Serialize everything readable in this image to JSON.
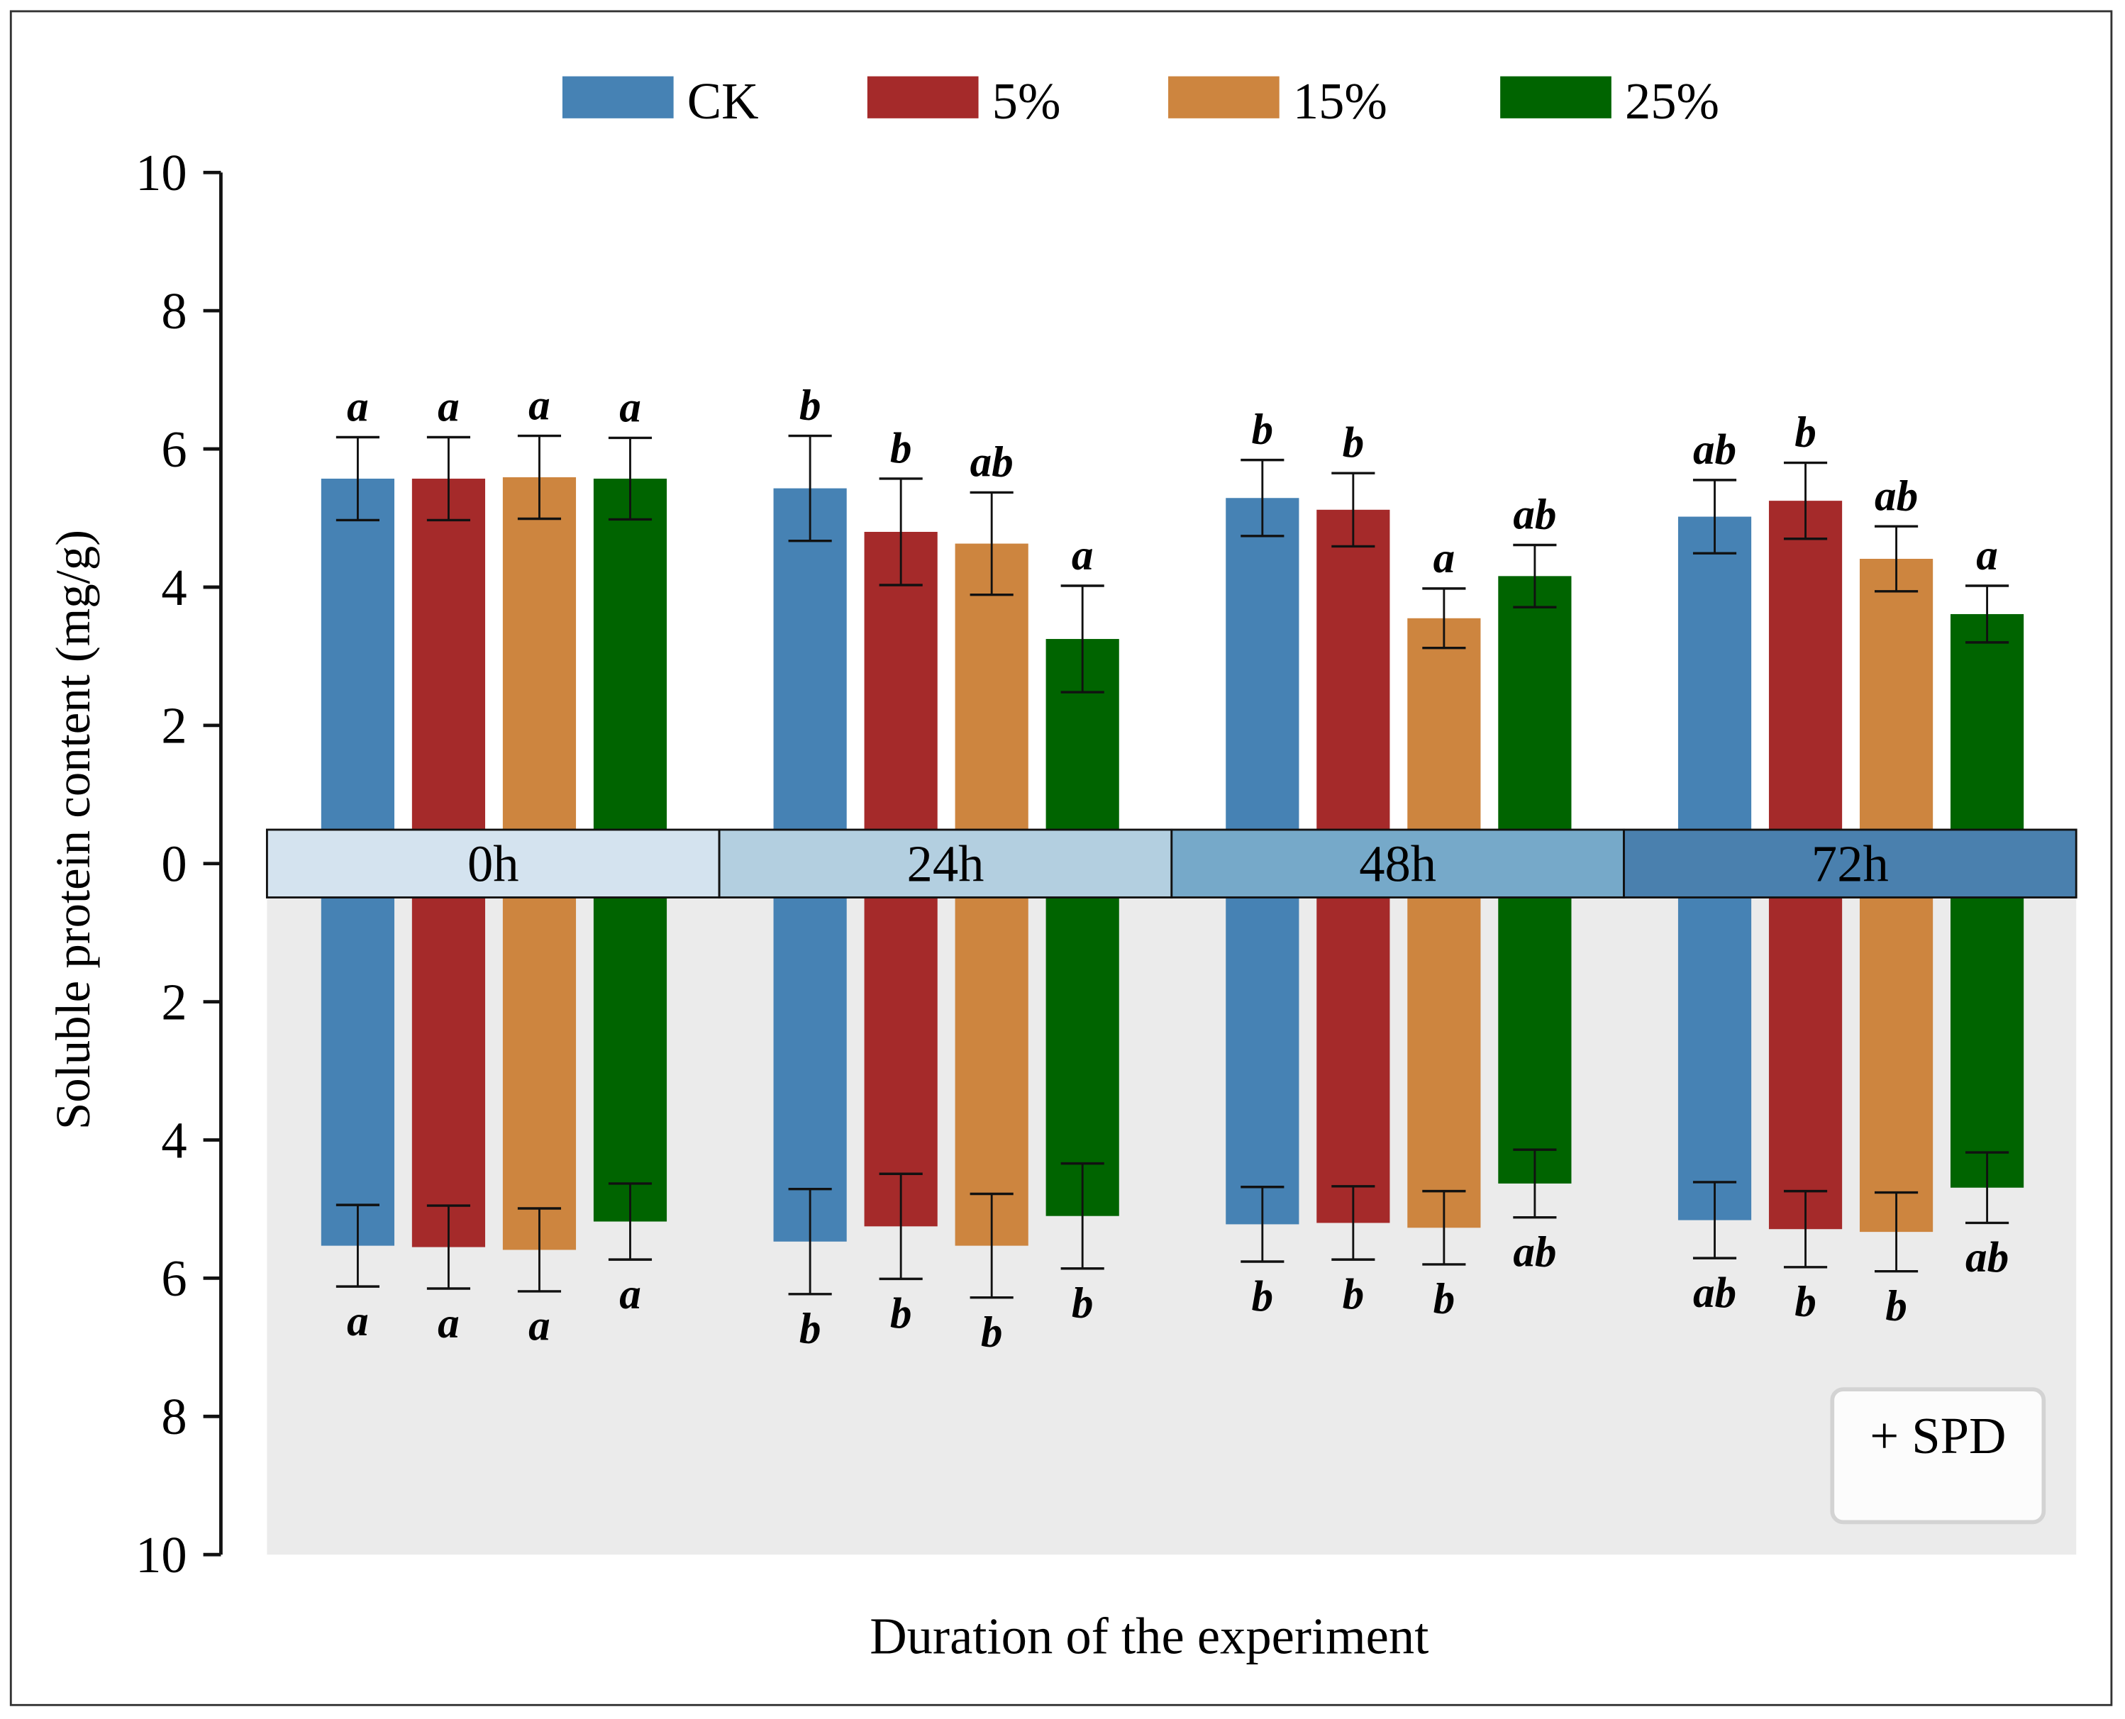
{
  "chart_data": {
    "type": "bar",
    "ylabel": "Soluble protein content (mg/g)",
    "xlabel": "Duration of the experiment",
    "categories": [
      "0h",
      "24h",
      "48h",
      "72h"
    ],
    "ylim": [
      0,
      10
    ],
    "yticks": [
      "0",
      "2",
      "4",
      "6",
      "8",
      "10"
    ],
    "panel_label": "+ SPD",
    "colors": {
      "CK": "#4682b4",
      "5%": "#a52a2a",
      "15%": "#cd853f",
      "25%": "#006400"
    },
    "band_colors": [
      "#d4e3ef",
      "#b3cfe0",
      "#76a9c9",
      "#4a80ae"
    ],
    "upper": {
      "series": [
        {
          "name": "CK",
          "values": [
            5.57,
            5.43,
            5.29,
            5.02
          ],
          "errors": [
            0.6,
            0.76,
            0.55,
            0.53
          ],
          "letters": [
            "a",
            "b",
            "b",
            "ab"
          ]
        },
        {
          "name": "5%",
          "values": [
            5.57,
            4.8,
            5.12,
            5.25
          ],
          "errors": [
            0.6,
            0.77,
            0.53,
            0.55
          ],
          "letters": [
            "a",
            "b",
            "b",
            "b"
          ]
        },
        {
          "name": "15%",
          "values": [
            5.59,
            4.63,
            3.55,
            4.41
          ],
          "errors": [
            0.6,
            0.74,
            0.43,
            0.47
          ],
          "letters": [
            "a",
            "ab",
            "a",
            "ab"
          ]
        },
        {
          "name": "25%",
          "values": [
            5.57,
            3.25,
            4.16,
            3.61
          ],
          "errors": [
            0.59,
            0.77,
            0.45,
            0.41
          ],
          "letters": [
            "a",
            "a",
            "ab",
            "a"
          ]
        }
      ]
    },
    "lower": {
      "series": [
        {
          "name": "CK",
          "values": [
            5.53,
            5.47,
            5.22,
            5.16
          ],
          "errors": [
            0.59,
            0.76,
            0.54,
            0.55
          ],
          "letters": [
            "a",
            "b",
            "b",
            "ab"
          ]
        },
        {
          "name": "5%",
          "values": [
            5.55,
            5.25,
            5.2,
            5.29
          ],
          "errors": [
            0.6,
            0.76,
            0.53,
            0.55
          ],
          "letters": [
            "a",
            "b",
            "b",
            "b"
          ]
        },
        {
          "name": "15%",
          "values": [
            5.59,
            5.53,
            5.27,
            5.33
          ],
          "errors": [
            0.6,
            0.75,
            0.53,
            0.57
          ],
          "letters": [
            "a",
            "b",
            "b",
            "b"
          ]
        },
        {
          "name": "25%",
          "values": [
            5.18,
            5.1,
            4.63,
            4.69
          ],
          "errors": [
            0.55,
            0.76,
            0.49,
            0.51
          ],
          "letters": [
            "a",
            "b",
            "ab",
            "ab"
          ]
        }
      ]
    },
    "legend": [
      "CK",
      "5%",
      "15%",
      "25%"
    ],
    "legend_position": "top-center"
  }
}
